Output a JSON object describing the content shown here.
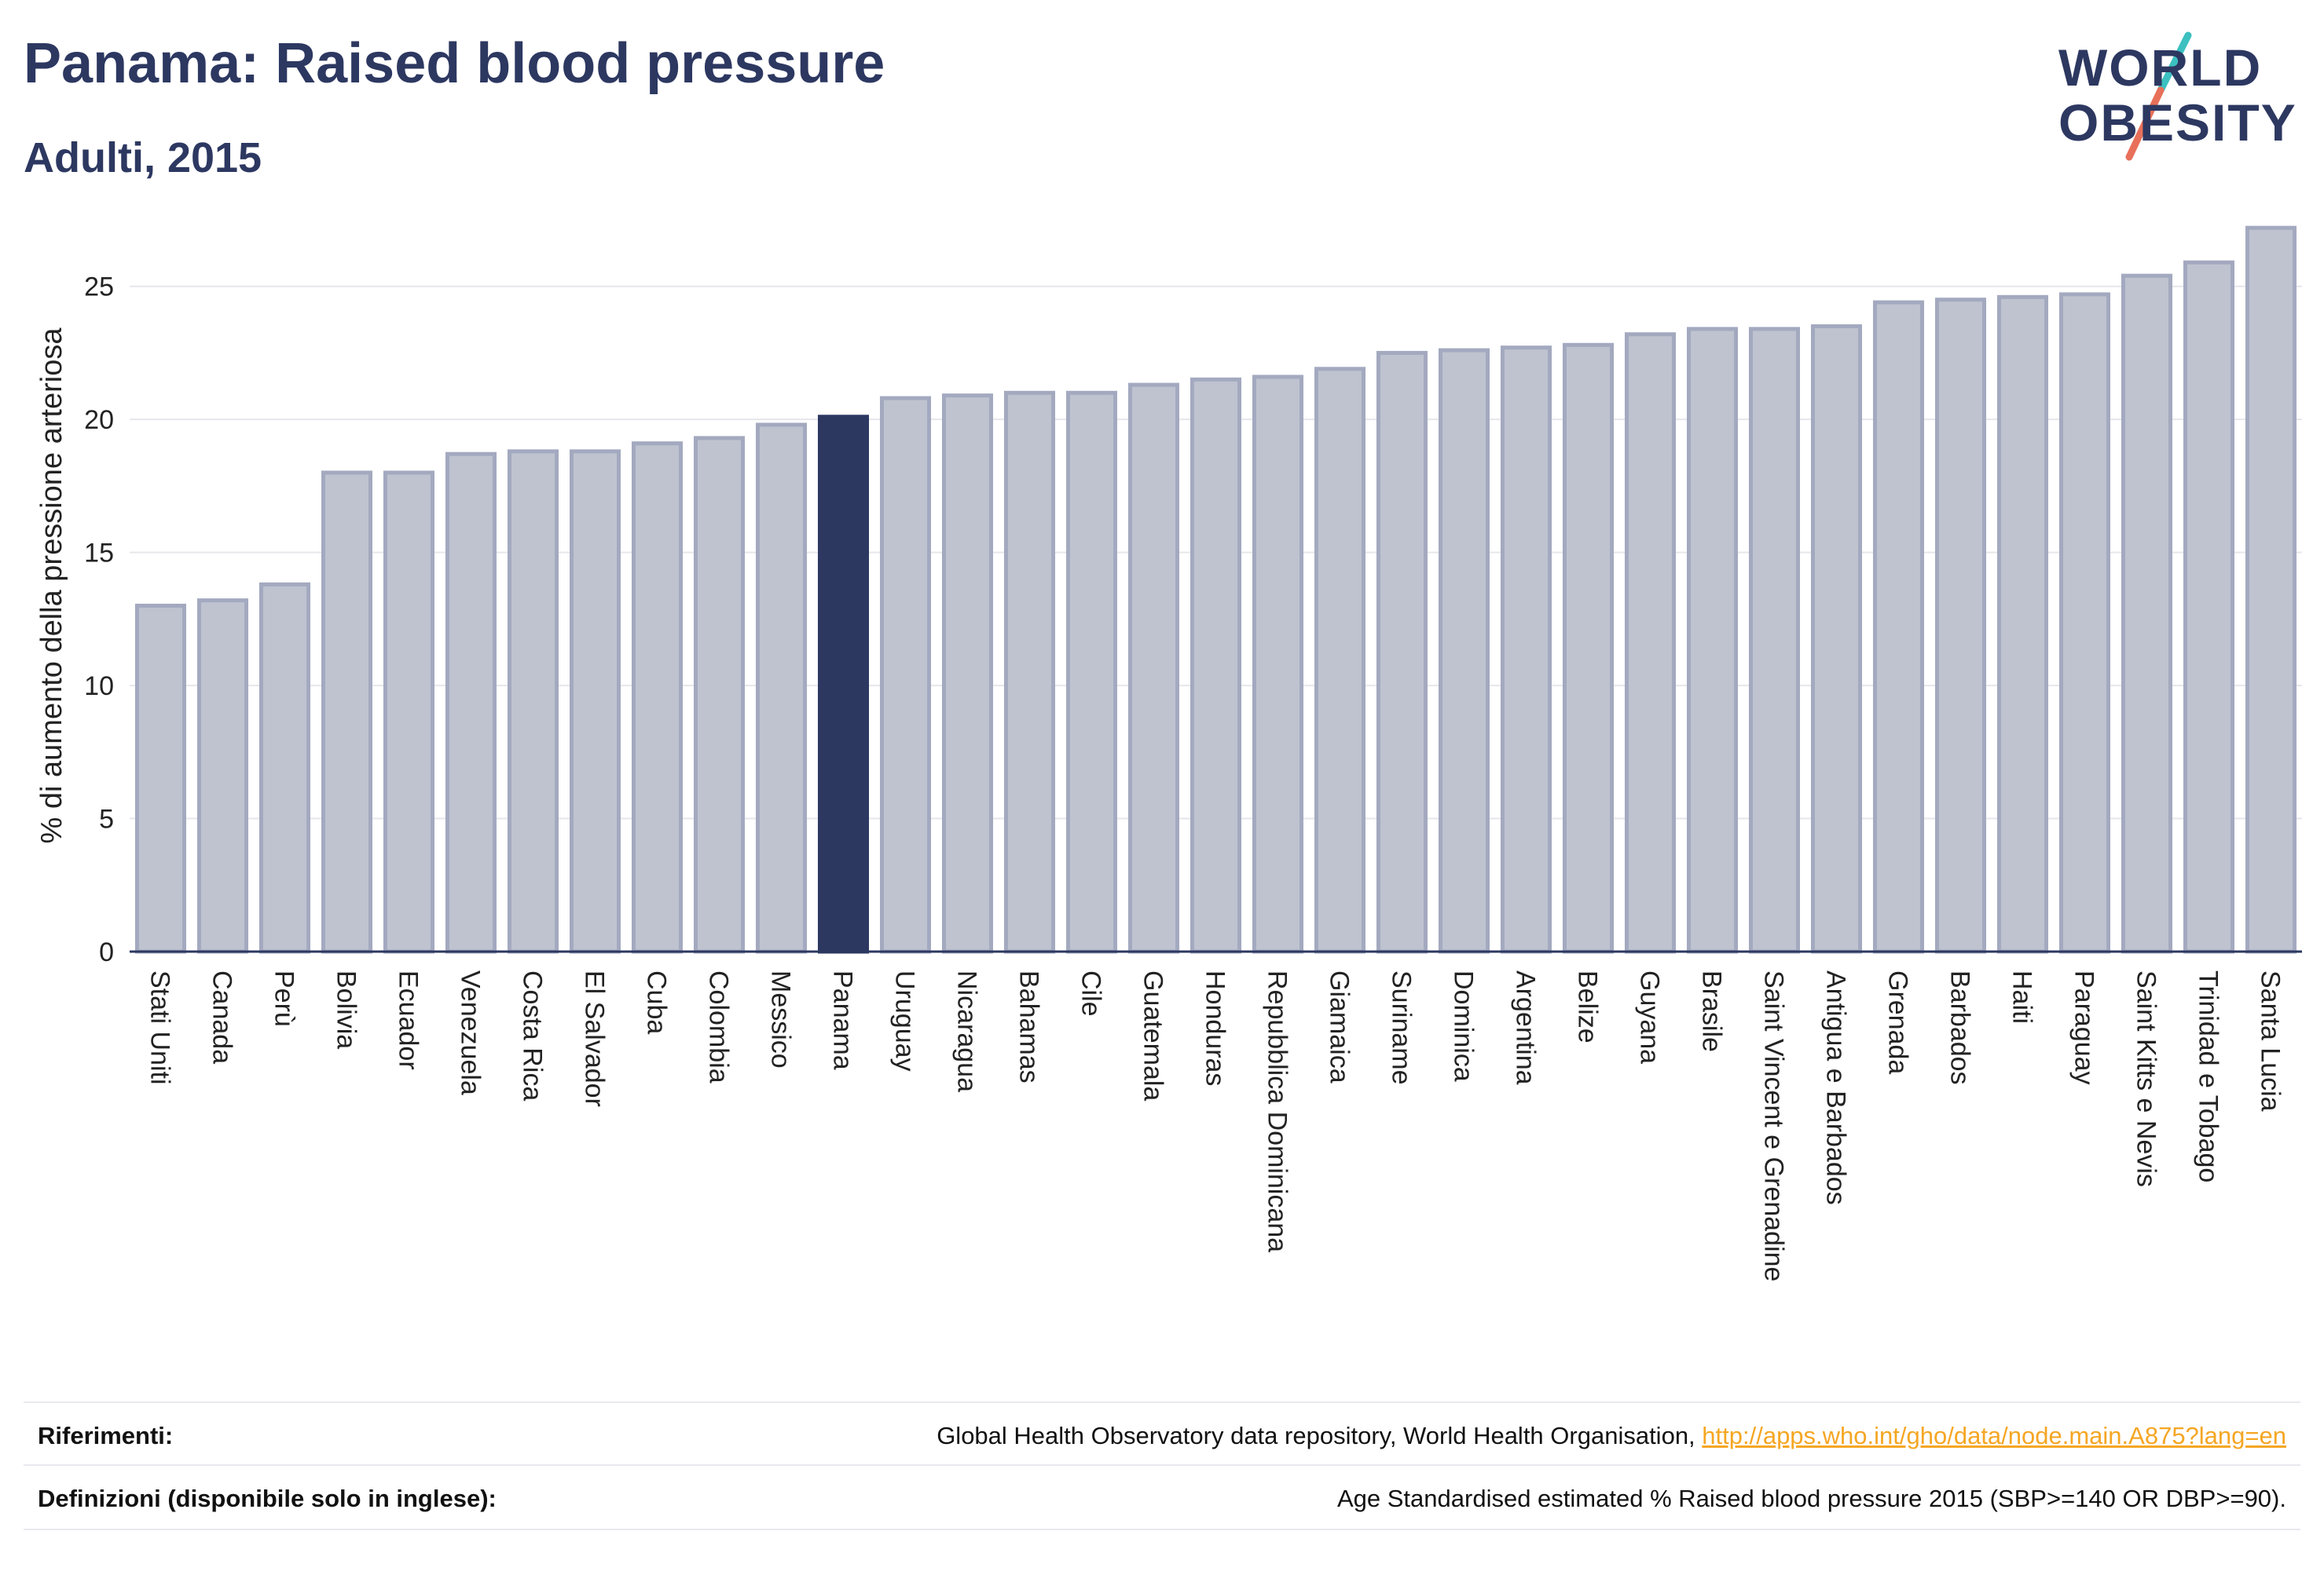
{
  "header": {
    "title": "Panama: Raised blood pressure",
    "subtitle": "Adulti, 2015"
  },
  "logo": {
    "line1": "WORLD",
    "line2": "OBESITY",
    "slash_colors": [
      "#3cc0c0",
      "#e8705a"
    ]
  },
  "colors": {
    "bar": "#bfc3d0",
    "bar_border": "#a3a9bf",
    "highlight": "#2d3861",
    "grid": "#e6e6ec",
    "axis": "#2d3861",
    "text": "#2d3861"
  },
  "chart_data": {
    "type": "bar",
    "title": "Panama: Raised blood pressure",
    "subtitle": "Adulti, 2015",
    "ylabel": "% di aumento della pressione arteriosa",
    "xlabel": "",
    "ylim": [
      0,
      27.5
    ],
    "yticks": [
      0,
      5,
      10,
      15,
      20,
      25
    ],
    "grid": true,
    "highlight_category": "Panama",
    "categories": [
      "Stati Uniti",
      "Canada",
      "Perù",
      "Bolivia",
      "Ecuador",
      "Venezuela",
      "Costa Rica",
      "El Salvador",
      "Cuba",
      "Colombia",
      "Messico",
      "Panama",
      "Uruguay",
      "Nicaragua",
      "Bahamas",
      "Cile",
      "Guatemala",
      "Honduras",
      "Repubblica Dominicana",
      "Giamaica",
      "Suriname",
      "Dominica",
      "Argentina",
      "Belize",
      "Guyana",
      "Brasile",
      "Saint Vincent e Grenadine",
      "Antigua e Barbados",
      "Grenada",
      "Barbados",
      "Haiti",
      "Paraguay",
      "Saint Kitts e Nevis",
      "Trinidad e Tobago",
      "Santa Lucia"
    ],
    "values": [
      13.0,
      13.2,
      13.8,
      18.0,
      18.0,
      18.7,
      18.8,
      18.8,
      19.1,
      19.3,
      19.8,
      20.1,
      20.8,
      20.9,
      21.0,
      21.0,
      21.3,
      21.5,
      21.6,
      21.9,
      22.5,
      22.6,
      22.7,
      22.8,
      23.2,
      23.4,
      23.4,
      23.5,
      24.4,
      24.5,
      24.6,
      24.7,
      25.4,
      25.9,
      27.2
    ]
  },
  "references": {
    "label": "Riferimenti:",
    "text": "Global Health Observatory data repository, World Health Organisation, ",
    "link": "http://apps.who.int/gho/data/node.main.A875?lang=en"
  },
  "definitions": {
    "label": "Definizioni (disponibile solo in inglese):",
    "text": "Age Standardised estimated % Raised blood pressure 2015 (SBP>=140 OR DBP>=90)."
  }
}
